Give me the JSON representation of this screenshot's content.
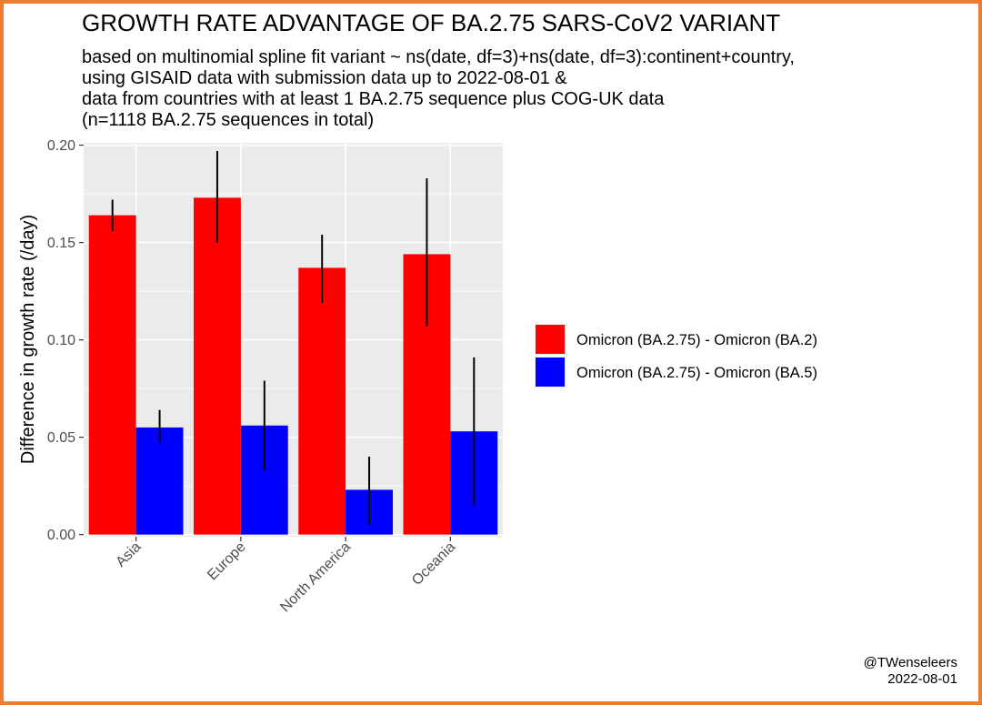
{
  "title": "GROWTH RATE ADVANTAGE OF BA.2.75 SARS-CoV2 VARIANT",
  "subtitle": [
    "based on multinomial spline fit variant ~ ns(date, df=3)+ns(date, df=3):continent+country,",
    "using GISAID data with submission data up to 2022-08-01 &",
    "data from countries with at least 1 BA.2.75 sequence plus COG-UK data",
    "(n=1118 BA.2.75 sequences in total)"
  ],
  "credit": {
    "author": "@TWenseleers",
    "date": "2022-08-01"
  },
  "colors": {
    "frame": "#ED7D31",
    "panel": "#EBEBEB",
    "grid": "#FFFFFF",
    "ba2": "#FF0000",
    "ba5": "#0000FF",
    "errorbar": "#000000"
  },
  "chart_data": {
    "type": "bar",
    "categories": [
      "Asia",
      "Europe",
      "North America",
      "Oceania"
    ],
    "ylabel": "Difference in growth rate (/day)",
    "xlabel": "",
    "ylim": [
      -0.0011,
      0.2012
    ],
    "yticks": [
      0.0,
      0.05,
      0.1,
      0.15,
      0.2
    ],
    "ytick_labels": [
      "0.00",
      "0.05",
      "0.10",
      "0.15",
      "0.20"
    ],
    "legend_position": "right",
    "series": [
      {
        "name": "Omicron (BA.2.75) - Omicron (BA.2)",
        "color": "#FF0000",
        "values": [
          0.164,
          0.173,
          0.137,
          0.144
        ],
        "lower": [
          0.156,
          0.15,
          0.119,
          0.107
        ],
        "upper": [
          0.172,
          0.197,
          0.154,
          0.183
        ]
      },
      {
        "name": "Omicron (BA.2.75) - Omicron (BA.5)",
        "color": "#0000FF",
        "values": [
          0.055,
          0.056,
          0.023,
          0.053
        ],
        "lower": [
          0.047,
          0.033,
          0.005,
          0.015
        ],
        "upper": [
          0.064,
          0.079,
          0.04,
          0.091
        ]
      }
    ]
  }
}
